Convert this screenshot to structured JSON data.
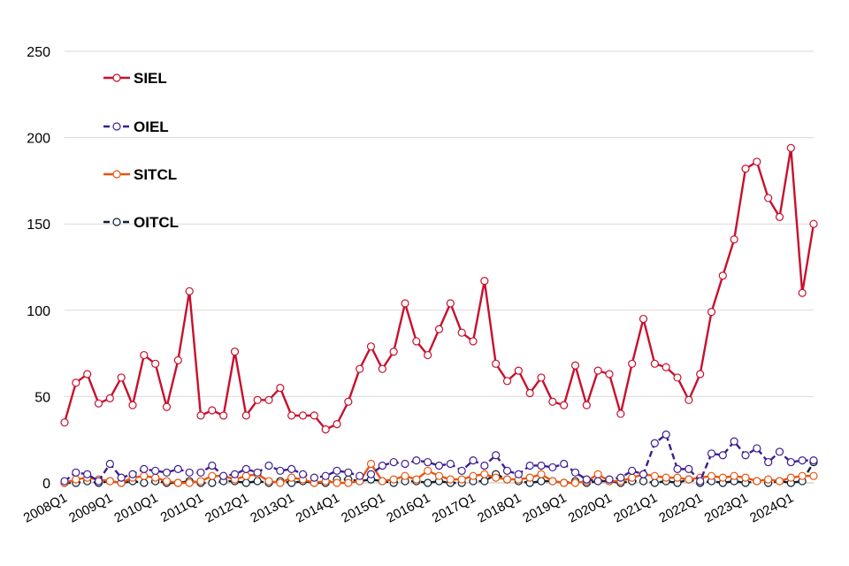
{
  "chart_data": {
    "type": "line",
    "title": "",
    "xlabel": "",
    "ylabel": "",
    "ylim": [
      0,
      250
    ],
    "yticks": [
      0,
      50,
      100,
      150,
      200,
      250
    ],
    "grid": "horizontal",
    "legend_position": "top-left",
    "x_start_year": 2008,
    "x_label_every": 4,
    "x": [
      "2008Q1",
      "2008Q2",
      "2008Q3",
      "2008Q4",
      "2009Q1",
      "2009Q2",
      "2009Q3",
      "2009Q4",
      "2010Q1",
      "2010Q2",
      "2010Q3",
      "2010Q4",
      "2011Q1",
      "2011Q2",
      "2011Q3",
      "2011Q4",
      "2012Q1",
      "2012Q2",
      "2012Q3",
      "2012Q4",
      "2013Q1",
      "2013Q2",
      "2013Q3",
      "2013Q4",
      "2014Q1",
      "2014Q2",
      "2014Q3",
      "2014Q4",
      "2015Q1",
      "2015Q2",
      "2015Q3",
      "2015Q4",
      "2016Q1",
      "2016Q2",
      "2016Q3",
      "2016Q4",
      "2017Q1",
      "2017Q2",
      "2017Q3",
      "2017Q4",
      "2018Q1",
      "2018Q2",
      "2018Q3",
      "2018Q4",
      "2019Q1",
      "2019Q2",
      "2019Q3",
      "2019Q4",
      "2020Q1",
      "2020Q2",
      "2020Q3",
      "2020Q4",
      "2021Q1",
      "2021Q2",
      "2021Q3",
      "2021Q4",
      "2022Q1",
      "2022Q2",
      "2022Q3",
      "2022Q4",
      "2023Q1",
      "2023Q2",
      "2023Q3",
      "2023Q4",
      "2024Q1",
      "2024Q2",
      "2024Q3"
    ],
    "x_tick_labels": [
      "2008Q1",
      "2009Q1",
      "2010Q1",
      "2011Q1",
      "2012Q1",
      "2013Q1",
      "2014Q1",
      "2015Q1",
      "2016Q1",
      "2017Q1",
      "2018Q1",
      "2019Q1",
      "2020Q1",
      "2021Q1",
      "2022Q1",
      "2023Q1",
      "2024Q1"
    ],
    "series": [
      {
        "name": "SIEL",
        "color": "#c8102e",
        "dash": "solid",
        "values": [
          35,
          58,
          63,
          46,
          49,
          61,
          45,
          74,
          69,
          44,
          71,
          111,
          39,
          42,
          39,
          76,
          39,
          48,
          48,
          55,
          39,
          39,
          39,
          31,
          34,
          47,
          66,
          79,
          66,
          76,
          104,
          82,
          74,
          89,
          104,
          87,
          82,
          117,
          69,
          59,
          65,
          52,
          61,
          47,
          45,
          68,
          45,
          65,
          63,
          40,
          69,
          95,
          69,
          67,
          61,
          48,
          63,
          99,
          120,
          141,
          182,
          186,
          165,
          154,
          194,
          110,
          150
        ]
      },
      {
        "name": "OIEL",
        "color": "#3d1e8f",
        "dash": "dashed",
        "values": [
          1,
          6,
          5,
          1,
          11,
          3,
          5,
          8,
          7,
          6,
          8,
          6,
          6,
          10,
          4,
          5,
          8,
          6,
          10,
          7,
          8,
          5,
          3,
          4,
          7,
          6,
          4,
          5,
          10,
          12,
          11,
          13,
          12,
          10,
          11,
          7,
          13,
          10,
          16,
          7,
          5,
          10,
          10,
          9,
          11,
          6,
          2,
          1,
          2,
          3,
          7,
          5,
          23,
          28,
          8,
          8,
          1,
          17,
          16,
          24,
          16,
          20,
          12,
          18,
          12,
          13,
          13
        ]
      },
      {
        "name": "SITCL",
        "color": "#e8560e",
        "dash": "solid",
        "values": [
          0,
          2,
          3,
          2,
          1,
          0,
          3,
          4,
          3,
          1,
          0,
          0,
          1,
          4,
          4,
          2,
          4,
          5,
          1,
          0,
          3,
          2,
          0,
          1,
          0,
          0,
          1,
          11,
          1,
          2,
          4,
          2,
          7,
          4,
          2,
          2,
          4,
          5,
          3,
          2,
          2,
          3,
          5,
          1,
          0,
          0,
          1,
          5,
          1,
          1,
          3,
          5,
          4,
          3,
          3,
          2,
          3,
          4,
          3,
          4,
          3,
          1,
          2,
          1,
          3,
          4,
          4
        ]
      },
      {
        "name": "OITCL",
        "color": "#0d1f33",
        "dash": "dashed",
        "values": [
          0,
          0,
          1,
          0,
          1,
          0,
          1,
          0,
          1,
          0,
          0,
          1,
          0,
          0,
          1,
          1,
          0,
          1,
          0,
          1,
          0,
          1,
          0,
          0,
          2,
          2,
          1,
          2,
          1,
          0,
          1,
          1,
          0,
          1,
          0,
          0,
          1,
          1,
          5,
          2,
          1,
          0,
          1,
          1,
          0,
          1,
          0,
          1,
          1,
          0,
          1,
          1,
          0,
          1,
          0,
          2,
          0,
          1,
          0,
          1,
          0,
          1,
          0,
          1,
          0,
          1,
          12
        ]
      }
    ]
  }
}
